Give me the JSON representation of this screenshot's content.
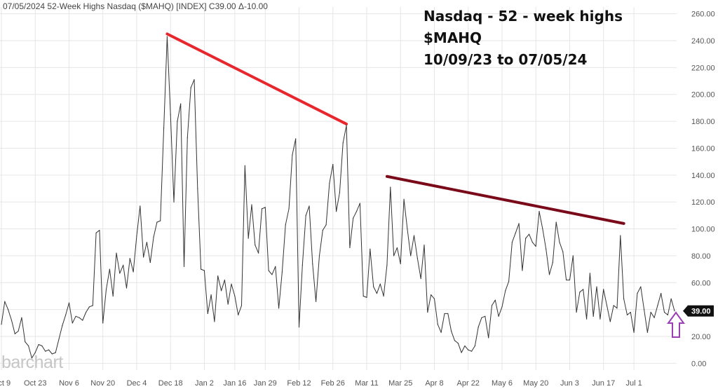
{
  "header": {
    "info": "07/05/2024 52-Week Highs Nasdaq ($MAHQ) [INDEX] C39.00 Δ-10.00"
  },
  "annotation": {
    "lines": [
      "Nasdaq - 52 - week highs",
      "$MAHQ",
      "10/09/23 to 07/05/24"
    ]
  },
  "logo": {
    "text": "barchart"
  },
  "colors": {
    "price_line": "#333333",
    "trendline_1": "#e8262e",
    "trendline_2": "#7a0a1a",
    "arrow": "#9b3fb5",
    "grid": "#e6e6e6"
  },
  "chart_data": {
    "type": "line",
    "title": "",
    "xlabel": "",
    "ylabel": "",
    "ylim": [
      -5,
      265
    ],
    "y_ticks": [
      "0.00",
      "20.00",
      "40.00",
      "60.00",
      "80.00",
      "100.00",
      "120.00",
      "140.00",
      "160.00",
      "180.00",
      "200.00",
      "220.00",
      "240.00",
      "260.00"
    ],
    "x_ticks": [
      {
        "label": "Oct 9",
        "i": 0
      },
      {
        "label": "Oct 23",
        "i": 10
      },
      {
        "label": "Nov 6",
        "i": 20
      },
      {
        "label": "Nov 20",
        "i": 30
      },
      {
        "label": "Dec 4",
        "i": 40
      },
      {
        "label": "Dec 18",
        "i": 50
      },
      {
        "label": "Jan 2",
        "i": 60
      },
      {
        "label": "Jan 16",
        "i": 69
      },
      {
        "label": "Jan 29",
        "i": 78
      },
      {
        "label": "Feb 12",
        "i": 88
      },
      {
        "label": "Feb 26",
        "i": 98
      },
      {
        "label": "Mar 11",
        "i": 108
      },
      {
        "label": "Mar 25",
        "i": 118
      },
      {
        "label": "Apr 8",
        "i": 128
      },
      {
        "label": "Apr 22",
        "i": 138
      },
      {
        "label": "May 6",
        "i": 148
      },
      {
        "label": "May 20",
        "i": 158
      },
      {
        "label": "Jun 3",
        "i": 168
      },
      {
        "label": "Jun 17",
        "i": 178
      },
      {
        "label": "Jul 1",
        "i": 187
      }
    ],
    "series": [
      {
        "values": [
          29,
          46,
          40,
          32,
          22,
          24,
          34,
          16,
          13,
          4,
          8,
          14,
          13,
          9,
          10,
          7,
          8,
          18,
          28,
          36,
          45,
          30,
          35,
          34,
          32,
          38,
          42,
          43,
          97,
          99,
          30,
          55,
          70,
          50,
          82,
          67,
          73,
          56,
          78,
          68,
          95,
          117,
          79,
          90,
          75,
          94,
          105,
          106,
          175,
          243,
          185,
          120,
          180,
          193,
          72,
          168,
          205,
          211,
          130,
          70,
          69,
          37,
          51,
          31,
          65,
          54,
          62,
          44,
          59,
          50,
          36,
          43,
          147,
          93,
          118,
          88,
          82,
          115,
          116,
          69,
          66,
          72,
          41,
          68,
          103,
          115,
          155,
          167,
          27,
          73,
          110,
          117,
          74,
          46,
          80,
          99,
          103,
          134,
          148,
          113,
          127,
          164,
          177,
          86,
          108,
          113,
          119,
          50,
          49,
          85,
          57,
          52,
          59,
          50,
          73,
          131,
          80,
          86,
          74,
          122,
          100,
          80,
          95,
          78,
          63,
          88,
          38,
          51,
          48,
          29,
          23,
          37,
          37,
          24,
          17,
          15,
          8,
          13,
          10,
          9,
          13,
          27,
          34,
          35,
          19,
          43,
          47,
          35,
          42,
          54,
          61,
          90,
          97,
          104,
          69,
          93,
          96,
          90,
          87,
          113,
          100,
          85,
          66,
          75,
          105,
          90,
          83,
          62,
          62,
          80,
          38,
          53,
          55,
          33,
          67,
          35,
          57,
          33,
          55,
          43,
          31,
          43,
          41,
          95,
          48,
          36,
          38,
          23,
          52,
          57,
          40,
          23,
          38,
          34,
          43,
          52,
          38,
          36,
          48,
          39
        ]
      }
    ],
    "last_value_label": "39.00",
    "trendlines": [
      {
        "x1": 49,
        "y1": 245,
        "x2": 102,
        "y2": 178
      },
      {
        "x1": 114,
        "y1": 139,
        "x2": 184,
        "y2": 104
      }
    ]
  }
}
